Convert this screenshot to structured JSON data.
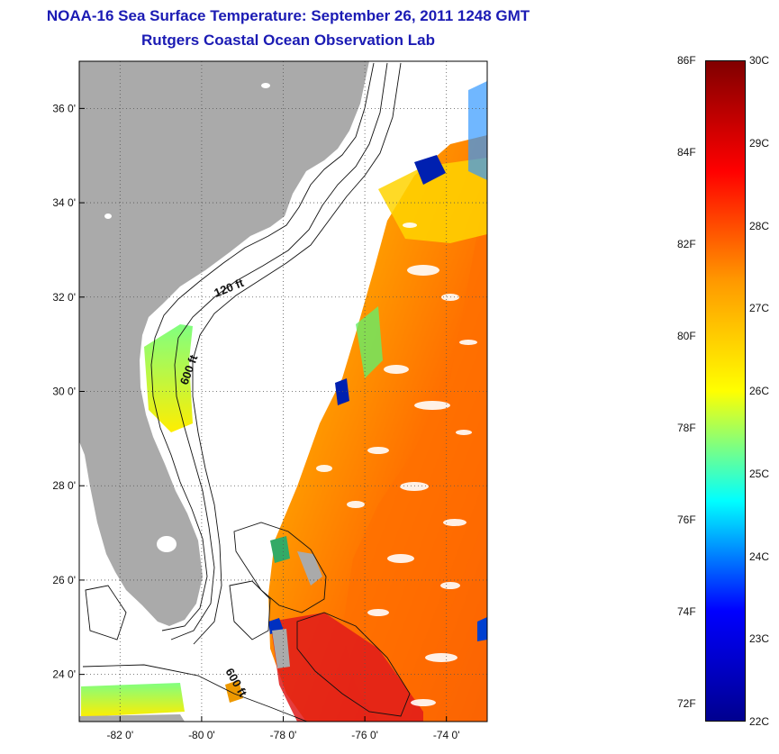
{
  "title": {
    "line1": "NOAA-16 Sea Surface Temperature:  September 26, 2011 1248 GMT",
    "line2": "Rutgers Coastal Ocean Observation Lab"
  },
  "map": {
    "lon_range": [
      -83,
      -73
    ],
    "lat_range": [
      23,
      37
    ],
    "lat_ticks": [
      {
        "value": 24,
        "label": "24 0'"
      },
      {
        "value": 26,
        "label": "26 0'"
      },
      {
        "value": 28,
        "label": "28 0'"
      },
      {
        "value": 30,
        "label": "30 0'"
      },
      {
        "value": 32,
        "label": "32 0'"
      },
      {
        "value": 34,
        "label": "34 0'"
      },
      {
        "value": 36,
        "label": "36 0'"
      }
    ],
    "lon_ticks": [
      {
        "value": -82,
        "label": "-82 0'"
      },
      {
        "value": -80,
        "label": "-80 0'"
      },
      {
        "value": -78,
        "label": "-78 0'"
      },
      {
        "value": -76,
        "label": "-76 0'"
      },
      {
        "value": -74,
        "label": "-74 0'"
      }
    ],
    "contour_labels": [
      "120 ft",
      "600 ft",
      "600 ft"
    ],
    "colors": {
      "land": "#aaaaaa",
      "background": "#ffffff",
      "grid": "#555555"
    }
  },
  "colorbar": {
    "f_labels": [
      "86F",
      "84F",
      "82F",
      "80F",
      "78F",
      "76F",
      "74F",
      "72F"
    ],
    "c_labels": [
      "30C",
      "29C",
      "28C",
      "27C",
      "26C",
      "25C",
      "24C",
      "23C",
      "22C"
    ],
    "c_range": [
      22,
      30
    ],
    "colors": [
      "#00008f",
      "#0000ff",
      "#00ffff",
      "#ffff00",
      "#ff9900",
      "#ff0000",
      "#800000"
    ]
  }
}
